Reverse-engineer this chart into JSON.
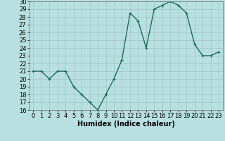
{
  "x": [
    0,
    1,
    2,
    3,
    4,
    5,
    6,
    7,
    8,
    9,
    10,
    11,
    12,
    13,
    14,
    15,
    16,
    17,
    18,
    19,
    20,
    21,
    22,
    23
  ],
  "y": [
    21,
    21,
    20,
    21,
    21,
    19,
    18,
    17,
    16,
    18,
    20,
    22.5,
    28.5,
    27.5,
    24,
    29,
    29.5,
    30,
    29.5,
    28.5,
    24.5,
    23,
    23,
    23.5
  ],
  "line_color": "#1a6b5a",
  "marker": "+",
  "marker_size": 3,
  "bg_color": "#b8e0e0",
  "grid_color_major": "#9bbcbc",
  "grid_color_minor": "#c8d8d8",
  "xlabel": "Humidex (Indice chaleur)",
  "xlim": [
    -0.5,
    23.5
  ],
  "ylim": [
    16,
    30
  ],
  "yticks": [
    16,
    17,
    18,
    19,
    20,
    21,
    22,
    23,
    24,
    25,
    26,
    27,
    28,
    29,
    30
  ],
  "xticks": [
    0,
    1,
    2,
    3,
    4,
    5,
    6,
    7,
    8,
    9,
    10,
    11,
    12,
    13,
    14,
    15,
    16,
    17,
    18,
    19,
    20,
    21,
    22,
    23
  ],
  "xlabel_fontsize": 7,
  "tick_fontsize": 6,
  "line_width": 1.0
}
